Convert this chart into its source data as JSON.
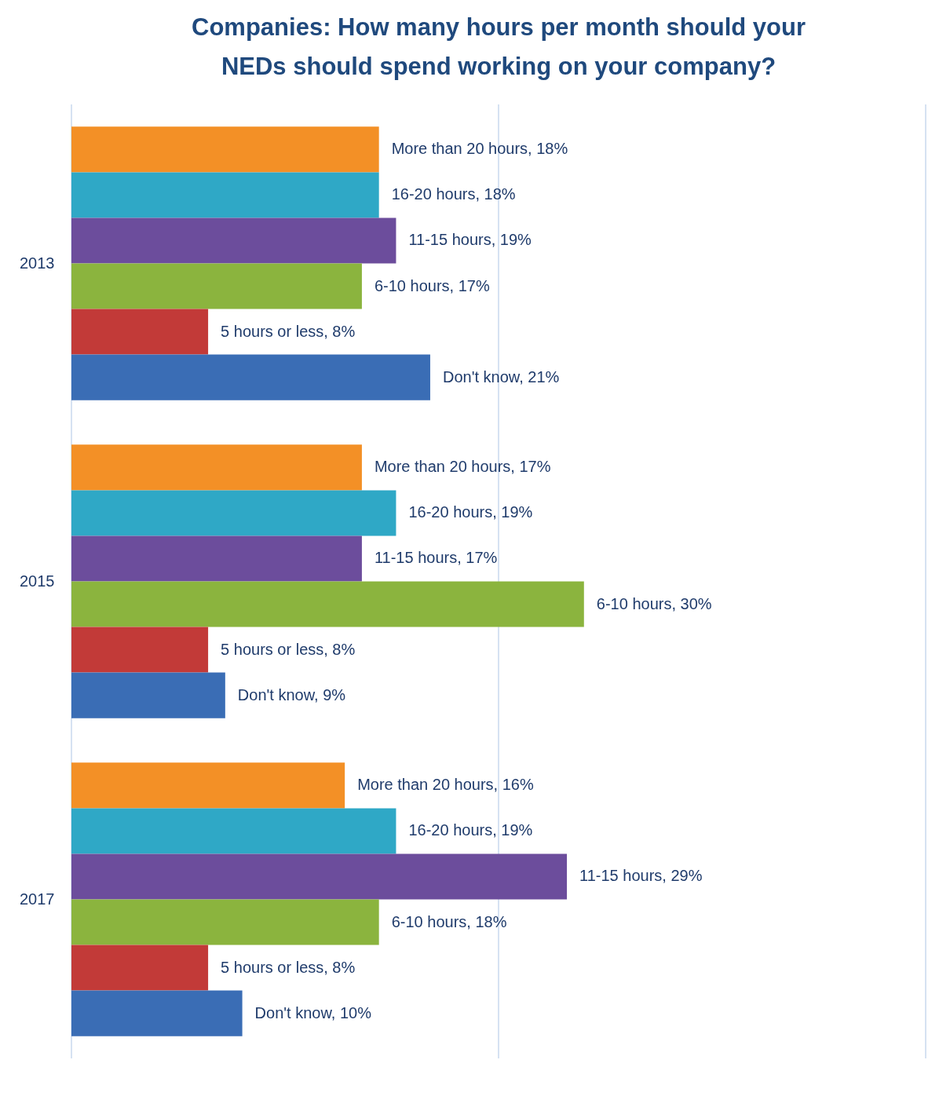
{
  "chart_data": {
    "type": "bar",
    "orientation": "horizontal",
    "title": "Companies: How many hours per month should your NEDs should spend working on your company?",
    "categories": [
      "2013",
      "2015",
      "2017"
    ],
    "series": [
      {
        "color": "#f39026",
        "values": [
          18,
          17,
          16
        ],
        "value_labels": [
          "More than 20 hours, 18%",
          "More than 20 hours, 17%",
          "More than 20 hours, 16%"
        ]
      },
      {
        "color": "#2fa8c6",
        "values": [
          18,
          19,
          19
        ],
        "value_labels": [
          "16-20 hours, 18%",
          "16-20 hours, 19%",
          "16-20 hours, 19%"
        ]
      },
      {
        "color": "#6c4d9c",
        "values": [
          19,
          17,
          29
        ],
        "value_labels": [
          "11-15 hours, 19%",
          "11-15 hours, 17%",
          "11-15 hours, 29%"
        ]
      },
      {
        "color": "#8bb43e",
        "values": [
          17,
          30,
          18
        ],
        "value_labels": [
          "6-10 hours, 17%",
          "6-10 hours, 30%",
          "6-10 hours, 18%"
        ]
      },
      {
        "color": "#c23a38",
        "values": [
          8,
          8,
          8
        ],
        "value_labels": [
          "5 hours or less, 8%",
          "5 hours or less, 8%",
          "5 hours or less, 8%"
        ]
      },
      {
        "color": "#3a6db5",
        "values": [
          21,
          9,
          10
        ],
        "value_labels": [
          "Don't know, 21%",
          "Don't know, 9%",
          "Don't know, 10%"
        ]
      }
    ],
    "xlim": [
      0,
      50
    ],
    "ref_lines": [
      {
        "axis": "x",
        "value": 0,
        "color": "#c9d9ee"
      },
      {
        "axis": "x",
        "value": 25,
        "color": "#c9d9ee"
      },
      {
        "axis": "x",
        "value": 50,
        "color": "#c9d9ee"
      }
    ],
    "tick_labels": "y"
  }
}
